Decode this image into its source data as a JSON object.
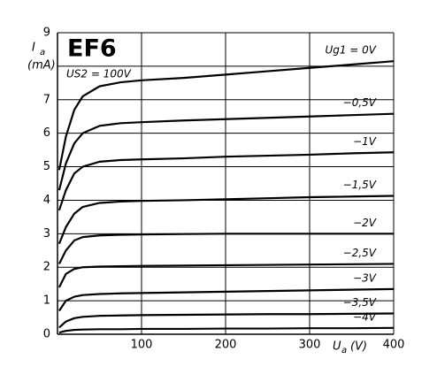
{
  "chart_data": {
    "type": "line",
    "title": "EF6",
    "subtitle": "US2 = 100V",
    "ylabel": [
      "I",
      "a"
    ],
    "ylabel_unit": "(mA)",
    "xlabel": [
      "U",
      "a"
    ],
    "xlabel_unit": "(V)",
    "xlim": [
      0,
      400
    ],
    "ylim": [
      0,
      9
    ],
    "xticks": [
      100,
      200,
      300,
      400
    ],
    "yticks": [
      0,
      1,
      2,
      3,
      4,
      5,
      6,
      7,
      9
    ],
    "ygrid": [
      1,
      2,
      3,
      4,
      5,
      6,
      7,
      8,
      9
    ],
    "grid": true,
    "color": "#000000",
    "x": [
      2,
      10,
      20,
      30,
      50,
      75,
      100,
      150,
      200,
      250,
      300,
      350,
      400
    ],
    "series": [
      {
        "name": "Ug1 = 0V",
        "values": [
          4.9,
          5.9,
          6.7,
          7.1,
          7.4,
          7.52,
          7.58,
          7.65,
          7.75,
          7.85,
          7.95,
          8.05,
          8.15
        ]
      },
      {
        "name": "−0,5V",
        "values": [
          4.3,
          5.1,
          5.7,
          6.0,
          6.22,
          6.3,
          6.33,
          6.38,
          6.42,
          6.46,
          6.5,
          6.54,
          6.58
        ]
      },
      {
        "name": "−1V",
        "values": [
          3.7,
          4.3,
          4.8,
          5.0,
          5.15,
          5.2,
          5.22,
          5.25,
          5.3,
          5.33,
          5.36,
          5.4,
          5.43
        ]
      },
      {
        "name": "−1,5V",
        "values": [
          2.7,
          3.2,
          3.6,
          3.8,
          3.92,
          3.96,
          3.98,
          4.0,
          4.03,
          4.06,
          4.09,
          4.11,
          4.13
        ]
      },
      {
        "name": "−2V",
        "values": [
          2.1,
          2.5,
          2.8,
          2.9,
          2.95,
          2.97,
          2.98,
          2.99,
          3.0,
          3.0,
          3.0,
          3.0,
          3.0
        ]
      },
      {
        "name": "−2,5V",
        "values": [
          1.4,
          1.8,
          1.95,
          2.0,
          2.02,
          2.03,
          2.04,
          2.05,
          2.06,
          2.07,
          2.08,
          2.09,
          2.1
        ]
      },
      {
        "name": "−3V",
        "values": [
          0.7,
          1.0,
          1.12,
          1.17,
          1.2,
          1.22,
          1.23,
          1.25,
          1.27,
          1.29,
          1.31,
          1.33,
          1.35
        ]
      },
      {
        "name": "−3,5V",
        "values": [
          0.2,
          0.38,
          0.48,
          0.52,
          0.55,
          0.56,
          0.57,
          0.58,
          0.59,
          0.6,
          0.6,
          0.61,
          0.62
        ]
      },
      {
        "name": "−4V",
        "values": [
          0.05,
          0.1,
          0.13,
          0.14,
          0.15,
          0.15,
          0.16,
          0.16,
          0.17,
          0.17,
          0.18,
          0.18,
          0.19
        ]
      }
    ]
  }
}
